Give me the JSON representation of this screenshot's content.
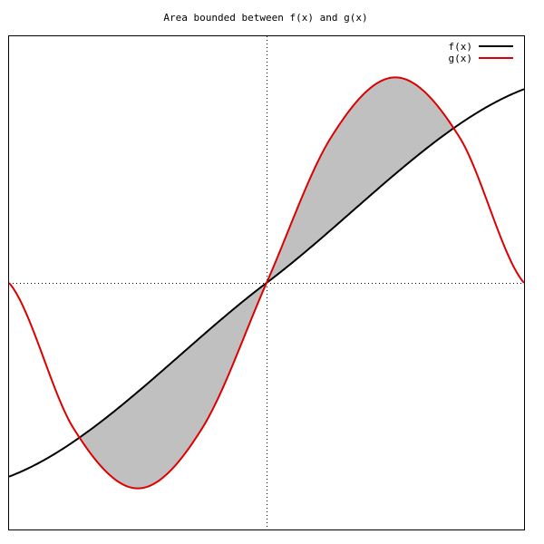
{
  "chart_data": {
    "type": "area",
    "title": "Area bounded between f(x) and g(x)",
    "xlabel": "",
    "ylabel": "",
    "xlim": [
      -3.14159,
      3.14159
    ],
    "ylim": [
      -1.2,
      1.2
    ],
    "grid": false,
    "zero_axes": true,
    "legend_position": "top-right",
    "series": [
      {
        "name": "f(x)",
        "color": "#000000",
        "kind": "line",
        "x": [
          -3.14159,
          0,
          3.14159
        ],
        "values": [
          -0.94248,
          0,
          0.94248
        ]
      },
      {
        "name": "g(x)",
        "color": "#dd0000",
        "kind": "line",
        "x": [
          -3.14159,
          -2.35619,
          -1.5708,
          -0.7854,
          0,
          0.7854,
          1.5708,
          2.35619,
          3.14159
        ],
        "values": [
          0,
          -0.70711,
          -1,
          -0.70711,
          0,
          0.70711,
          1,
          0.70711,
          0
        ]
      }
    ],
    "fill": {
      "between": [
        "f(x)",
        "g(x)"
      ],
      "color": "#c0c0c0",
      "x_range": [
        -2.3,
        2.3
      ]
    }
  }
}
